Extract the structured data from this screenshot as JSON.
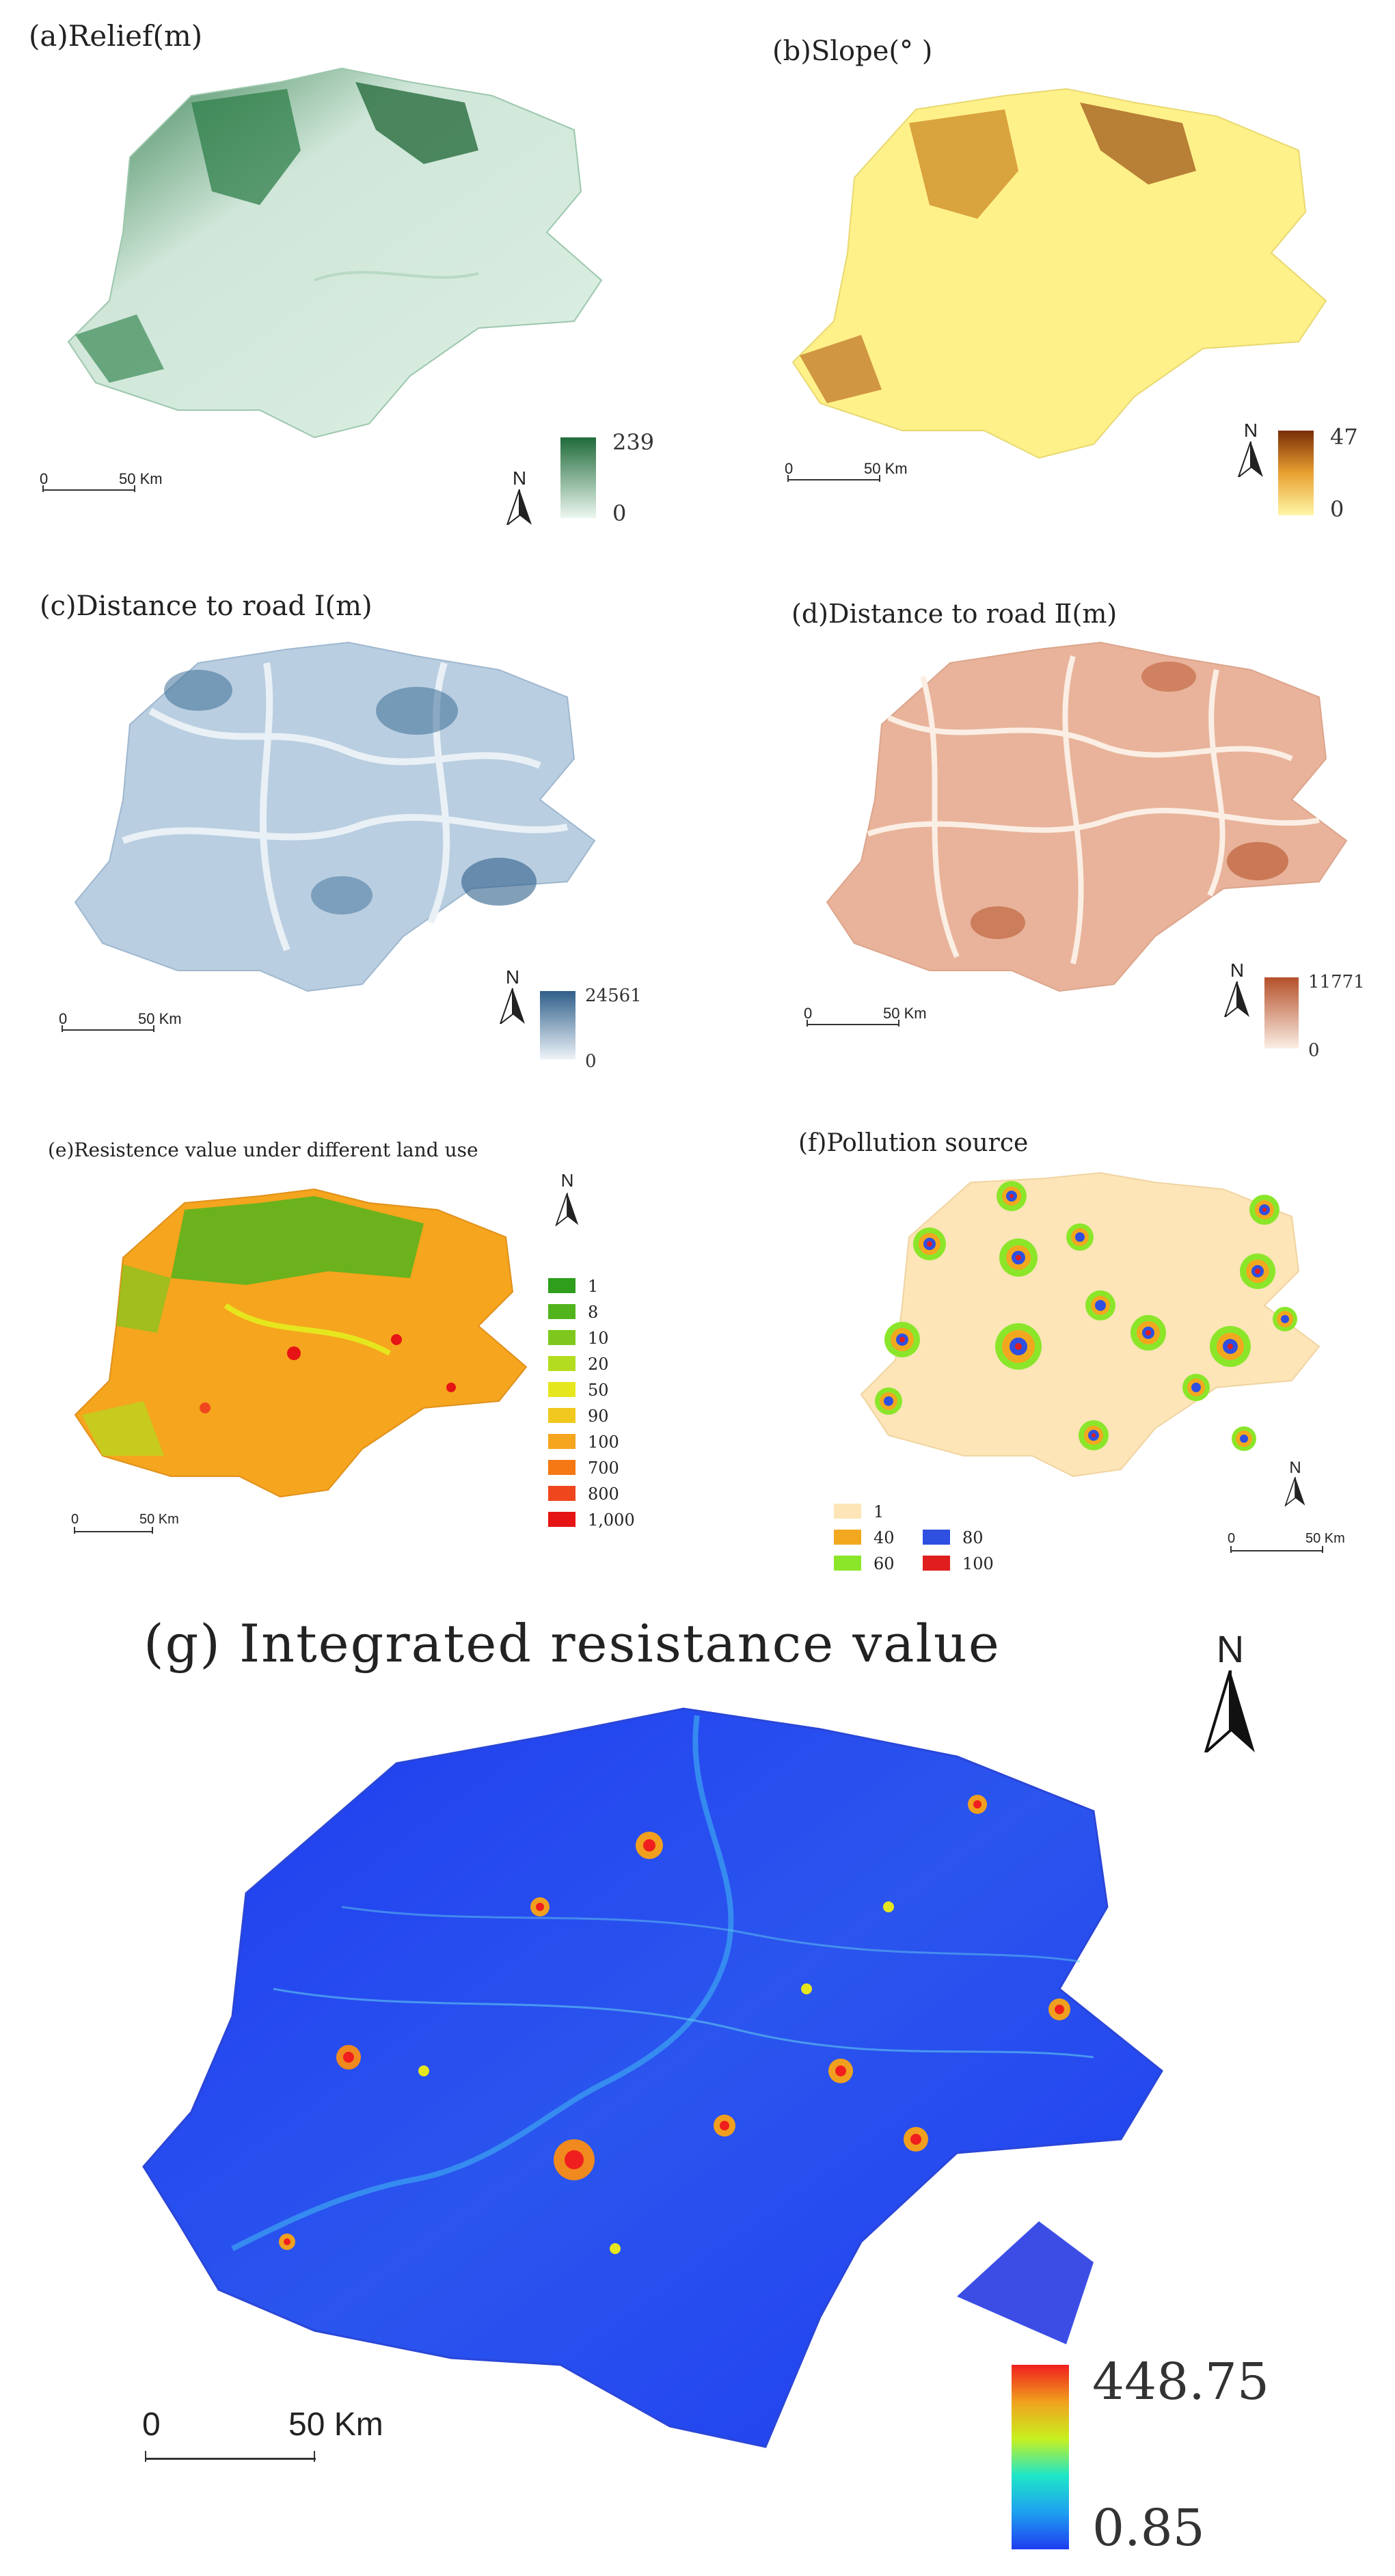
{
  "panels": {
    "a": {
      "title": "(a)Relief(m)",
      "ramp_max": "239",
      "ramp_min": "0",
      "scale_zero": "0",
      "scale_dist": "50 Km",
      "north": "N",
      "colors": [
        "#edf7f0",
        "#1f6b3a"
      ]
    },
    "b": {
      "title": "(b)Slope(° )",
      "ramp_max": "47",
      "ramp_min": "0",
      "scale_zero": "0",
      "scale_dist": "50 Km",
      "north": "N",
      "colors": [
        "#fff7a8",
        "#7a2d08"
      ]
    },
    "c": {
      "title": "(c)Distance to road Ⅰ(m)",
      "ramp_max": "24561",
      "ramp_min": "0",
      "scale_zero": "0",
      "scale_dist": "50 Km",
      "north": "N",
      "colors": [
        "#eef3f8",
        "#2f5f8a"
      ]
    },
    "d": {
      "title": "(d)Distance to road Ⅱ(m)",
      "ramp_max": "11771",
      "ramp_min": "0",
      "scale_zero": "0",
      "scale_dist": "50 Km",
      "north": "N",
      "colors": [
        "#fbeee4",
        "#b5502a"
      ]
    },
    "e": {
      "title": "(e)Resistence value under different land use",
      "scale_zero": "0",
      "scale_dist": "50 Km",
      "north": "N",
      "legend": [
        {
          "label": "1",
          "color": "#2e9e1c"
        },
        {
          "label": "8",
          "color": "#52b41c"
        },
        {
          "label": "10",
          "color": "#7ec81e"
        },
        {
          "label": "20",
          "color": "#b4dc1e"
        },
        {
          "label": "50",
          "color": "#e6e61e"
        },
        {
          "label": "90",
          "color": "#f0c81e"
        },
        {
          "label": "100",
          "color": "#f5a51e"
        },
        {
          "label": "700",
          "color": "#f57814"
        },
        {
          "label": "800",
          "color": "#f0461e"
        },
        {
          "label": "1,000",
          "color": "#e61414"
        }
      ]
    },
    "f": {
      "title": "(f)Pollution source",
      "scale_zero": "0",
      "scale_dist": "50 Km",
      "north": "N",
      "legend": [
        {
          "label": "1",
          "color": "#fde5b8"
        },
        {
          "label": "40",
          "color": "#f2a81e"
        },
        {
          "label": "80",
          "color": "#2f4fe0"
        },
        {
          "label": "60",
          "color": "#8be62a"
        },
        {
          "label": "100",
          "color": "#e01e1e"
        }
      ]
    },
    "g": {
      "title": "(g)  Integrated resistance value",
      "ramp_max": "448.75",
      "ramp_min": "0.85",
      "scale_zero": "0",
      "scale_dist": "50 Km",
      "north": "N",
      "colors": [
        "#1e3cf0",
        "#1ea0f0",
        "#1ee6c8",
        "#c8f01e",
        "#f0a01e",
        "#f01e1e"
      ]
    }
  }
}
